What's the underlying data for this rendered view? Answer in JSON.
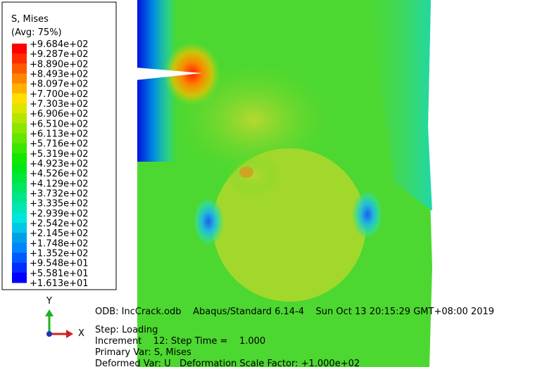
{
  "legend": {
    "title": "S, Mises",
    "subtitle": "(Avg: 75%)",
    "levels": [
      "+9.684e+02",
      "+9.287e+02",
      "+8.890e+02",
      "+8.493e+02",
      "+8.097e+02",
      "+7.700e+02",
      "+7.303e+02",
      "+6.906e+02",
      "+6.510e+02",
      "+6.113e+02",
      "+5.716e+02",
      "+5.319e+02",
      "+4.923e+02",
      "+4.526e+02",
      "+4.129e+02",
      "+3.732e+02",
      "+3.335e+02",
      "+2.939e+02",
      "+2.542e+02",
      "+2.145e+02",
      "+1.748e+02",
      "+1.352e+02",
      "+9.548e+01",
      "+5.581e+01",
      "+1.613e+01"
    ]
  },
  "triad": {
    "y": "Y",
    "x": "X"
  },
  "info": {
    "odb": "ODB: IncCrack.odb    Abaqus/Standard 6.14-4    Sun Oct 13 20:15:29 GMT+08:00 2019",
    "step": "Step: Loading",
    "increment": "Increment    12: Step Time =    1.000",
    "primary": "Primary Var: S, Mises",
    "deformed": "Deformed Var: U   Deformation Scale Factor: +1.000e+02"
  }
}
